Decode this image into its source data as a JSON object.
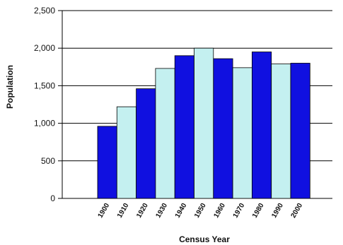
{
  "chart_data": {
    "type": "bar",
    "title": "",
    "xlabel": "Census Year",
    "ylabel": "Population",
    "categories": [
      "1900",
      "1910",
      "1920",
      "1930",
      "1940",
      "1950",
      "1960",
      "1970",
      "1980",
      "1990",
      "2000"
    ],
    "values": [
      960,
      1220,
      1460,
      1730,
      1900,
      2000,
      1860,
      1740,
      1950,
      1790,
      1800
    ],
    "ylim": [
      0,
      2500
    ],
    "yticks": [
      "0",
      "500",
      "1,000",
      "1,500",
      "2,000",
      "2,500"
    ],
    "grid": true,
    "legend": "none",
    "colors": {
      "dark": "#1010e0",
      "light": "#c4f0f0",
      "gridline": "#000000",
      "axis": "#000000"
    }
  }
}
